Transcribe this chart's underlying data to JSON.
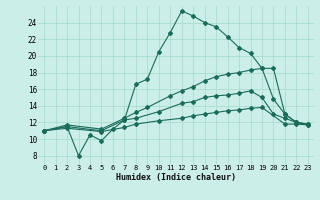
{
  "bg_color": "#cceee8",
  "grid_color": "#aaddcc",
  "line_color": "#1a6b5a",
  "xlabel": "Humidex (Indice chaleur)",
  "xlim": [
    -0.5,
    23.5
  ],
  "ylim": [
    7,
    26
  ],
  "xticks": [
    0,
    1,
    2,
    3,
    4,
    5,
    6,
    7,
    8,
    9,
    10,
    11,
    12,
    13,
    14,
    15,
    16,
    17,
    18,
    19,
    20,
    21,
    22,
    23
  ],
  "yticks": [
    8,
    10,
    12,
    14,
    16,
    18,
    20,
    22,
    24
  ],
  "lines": [
    {
      "x": [
        0,
        2,
        3,
        4,
        5,
        6,
        7,
        8,
        9,
        10,
        11,
        12,
        13,
        14,
        15,
        16,
        17,
        18,
        19,
        20,
        21,
        22,
        23
      ],
      "y": [
        11,
        11.5,
        8,
        10.5,
        9.8,
        11.2,
        12.3,
        16.6,
        17.2,
        20.5,
        22.8,
        25.4,
        24.8,
        24.0,
        23.5,
        22.3,
        21.0,
        20.3,
        18.5,
        18.5,
        13.0,
        12.0,
        11.8
      ]
    },
    {
      "x": [
        0,
        2,
        5,
        7,
        8,
        9,
        11,
        12,
        13,
        14,
        15,
        16,
        17,
        18,
        19,
        20,
        21,
        22,
        23
      ],
      "y": [
        11,
        11.7,
        11.2,
        12.5,
        13.2,
        13.8,
        15.2,
        15.8,
        16.3,
        17.0,
        17.5,
        17.8,
        18.0,
        18.3,
        18.5,
        14.8,
        13.0,
        12.0,
        11.8
      ]
    },
    {
      "x": [
        0,
        2,
        5,
        7,
        8,
        10,
        12,
        13,
        14,
        15,
        16,
        17,
        18,
        19,
        20,
        21,
        22,
        23
      ],
      "y": [
        11,
        11.5,
        11.0,
        12.3,
        12.5,
        13.3,
        14.3,
        14.5,
        15.0,
        15.2,
        15.3,
        15.5,
        15.8,
        15.0,
        13.0,
        12.5,
        12.0,
        11.7
      ]
    },
    {
      "x": [
        0,
        2,
        5,
        7,
        8,
        10,
        12,
        13,
        14,
        15,
        16,
        17,
        18,
        19,
        21,
        22,
        23
      ],
      "y": [
        11,
        11.3,
        10.9,
        11.4,
        11.8,
        12.2,
        12.5,
        12.8,
        13.0,
        13.2,
        13.4,
        13.5,
        13.7,
        13.8,
        11.8,
        11.8,
        11.7
      ]
    }
  ]
}
